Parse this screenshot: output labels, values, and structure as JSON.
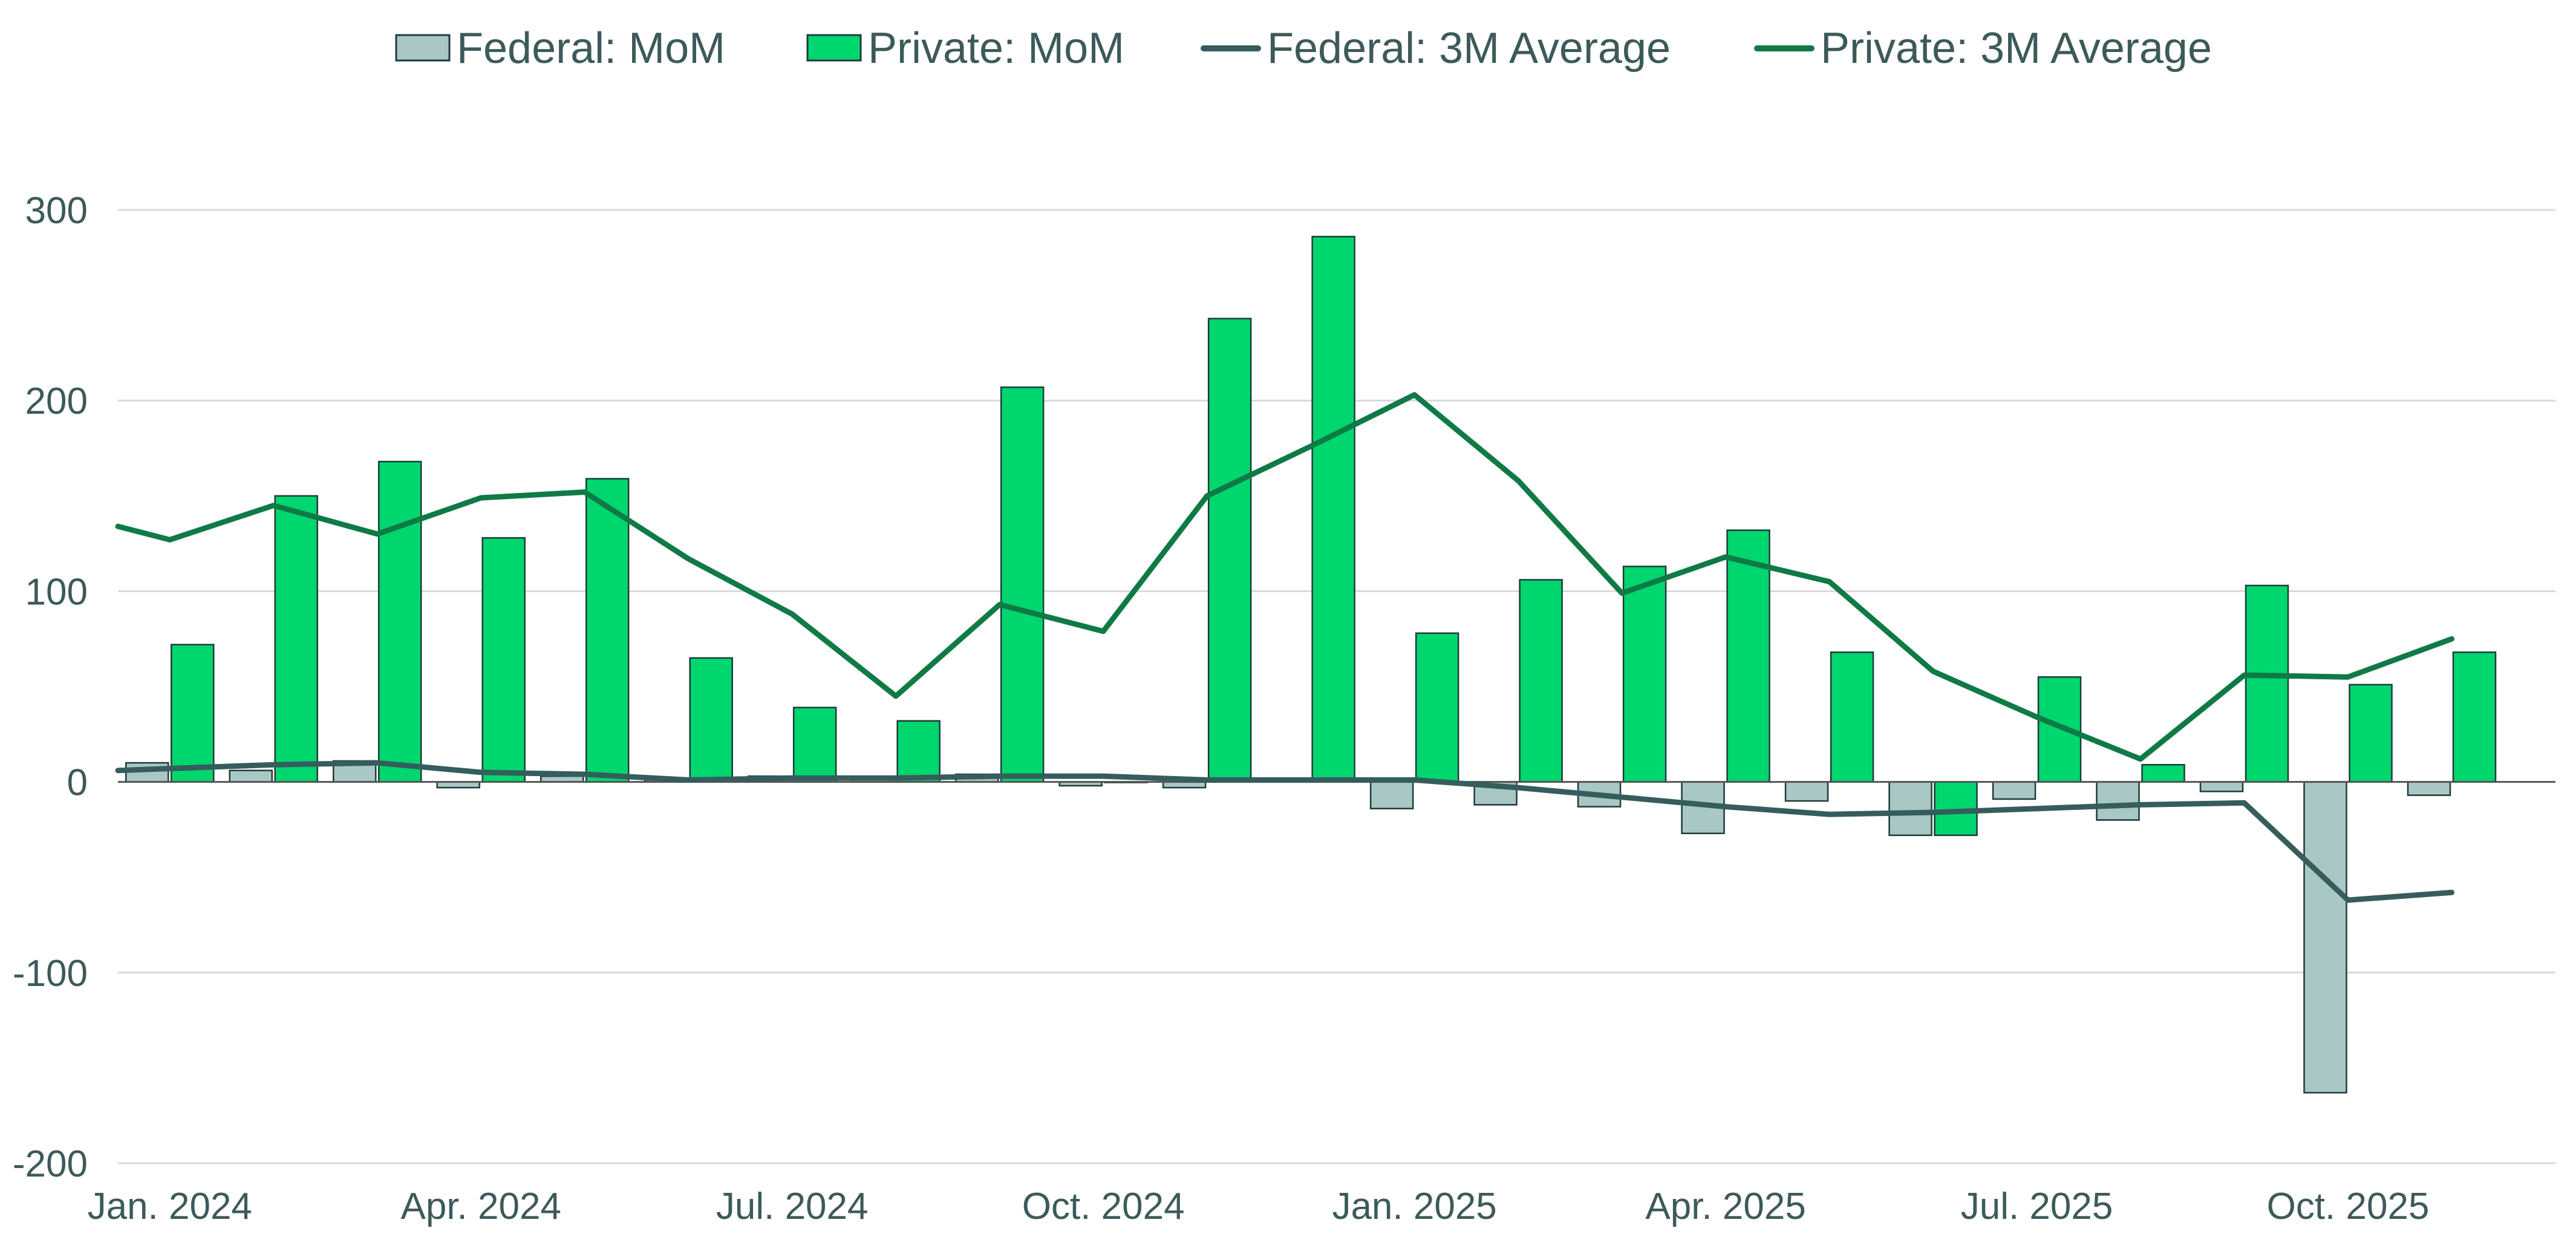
{
  "chart_data": {
    "type": "bar",
    "title": "",
    "xlabel": "",
    "ylabel": "",
    "ylim": [
      -200,
      300
    ],
    "yticks": [
      300,
      200,
      100,
      0,
      -100,
      -200
    ],
    "grid": true,
    "legend_position": "top",
    "categories": [
      "2024-01",
      "2024-02",
      "2024-03",
      "2024-04",
      "2024-05",
      "2024-06",
      "2024-07",
      "2024-08",
      "2024-09",
      "2024-10",
      "2024-11",
      "2024-12",
      "2025-01",
      "2025-02",
      "2025-03",
      "2025-04",
      "2025-05",
      "2025-06",
      "2025-07",
      "2025-08",
      "2025-09",
      "2025-10",
      "2025-11"
    ],
    "x_tick_labels": [
      {
        "category": "2024-01",
        "label": "Jan. 2024"
      },
      {
        "category": "2024-04",
        "label": "Apr. 2024"
      },
      {
        "category": "2024-07",
        "label": "Jul. 2024"
      },
      {
        "category": "2024-10",
        "label": "Oct. 2024"
      },
      {
        "category": "2025-01",
        "label": "Jan. 2025"
      },
      {
        "category": "2025-04",
        "label": "Apr. 2025"
      },
      {
        "category": "2025-07",
        "label": "Jul. 2025"
      },
      {
        "category": "2025-10",
        "label": "Oct. 2025"
      }
    ],
    "series": [
      {
        "name": "Federal: MoM",
        "type": "bar",
        "color": "#a9c7c5",
        "values": [
          10,
          6,
          11,
          -3,
          3,
          1,
          3,
          2,
          4,
          -2,
          -3,
          1,
          -14,
          -12,
          -13,
          -27,
          -10,
          -28,
          -9,
          -20,
          -5,
          -163,
          -7
        ]
      },
      {
        "name": "Private: MoM",
        "type": "bar",
        "color": "#00d66e",
        "values": [
          72,
          150,
          168,
          128,
          159,
          65,
          39,
          32,
          207,
          0,
          243,
          286,
          78,
          106,
          113,
          132,
          68,
          -28,
          55,
          9,
          103,
          51,
          68
        ]
      },
      {
        "name": "Federal: 3M Average",
        "type": "line",
        "color": "#365d5d",
        "values": [
          7,
          9,
          10,
          5,
          4,
          1,
          2,
          2,
          3,
          3,
          1,
          1,
          1,
          -3,
          -8,
          -13,
          -17,
          -16,
          -14,
          -12,
          -11,
          -62,
          -58
        ]
      },
      {
        "name": "Private: 3M Average",
        "type": "line",
        "color": "#0f7a45",
        "values": [
          127,
          145,
          130,
          149,
          152,
          117,
          88,
          45,
          93,
          79,
          150,
          176,
          203,
          158,
          99,
          118,
          105,
          58,
          34,
          12,
          56,
          55,
          75
        ]
      }
    ],
    "line_start_values": {
      "Private: 3M Average": 134,
      "Federal: 3M Average": 6
    }
  }
}
